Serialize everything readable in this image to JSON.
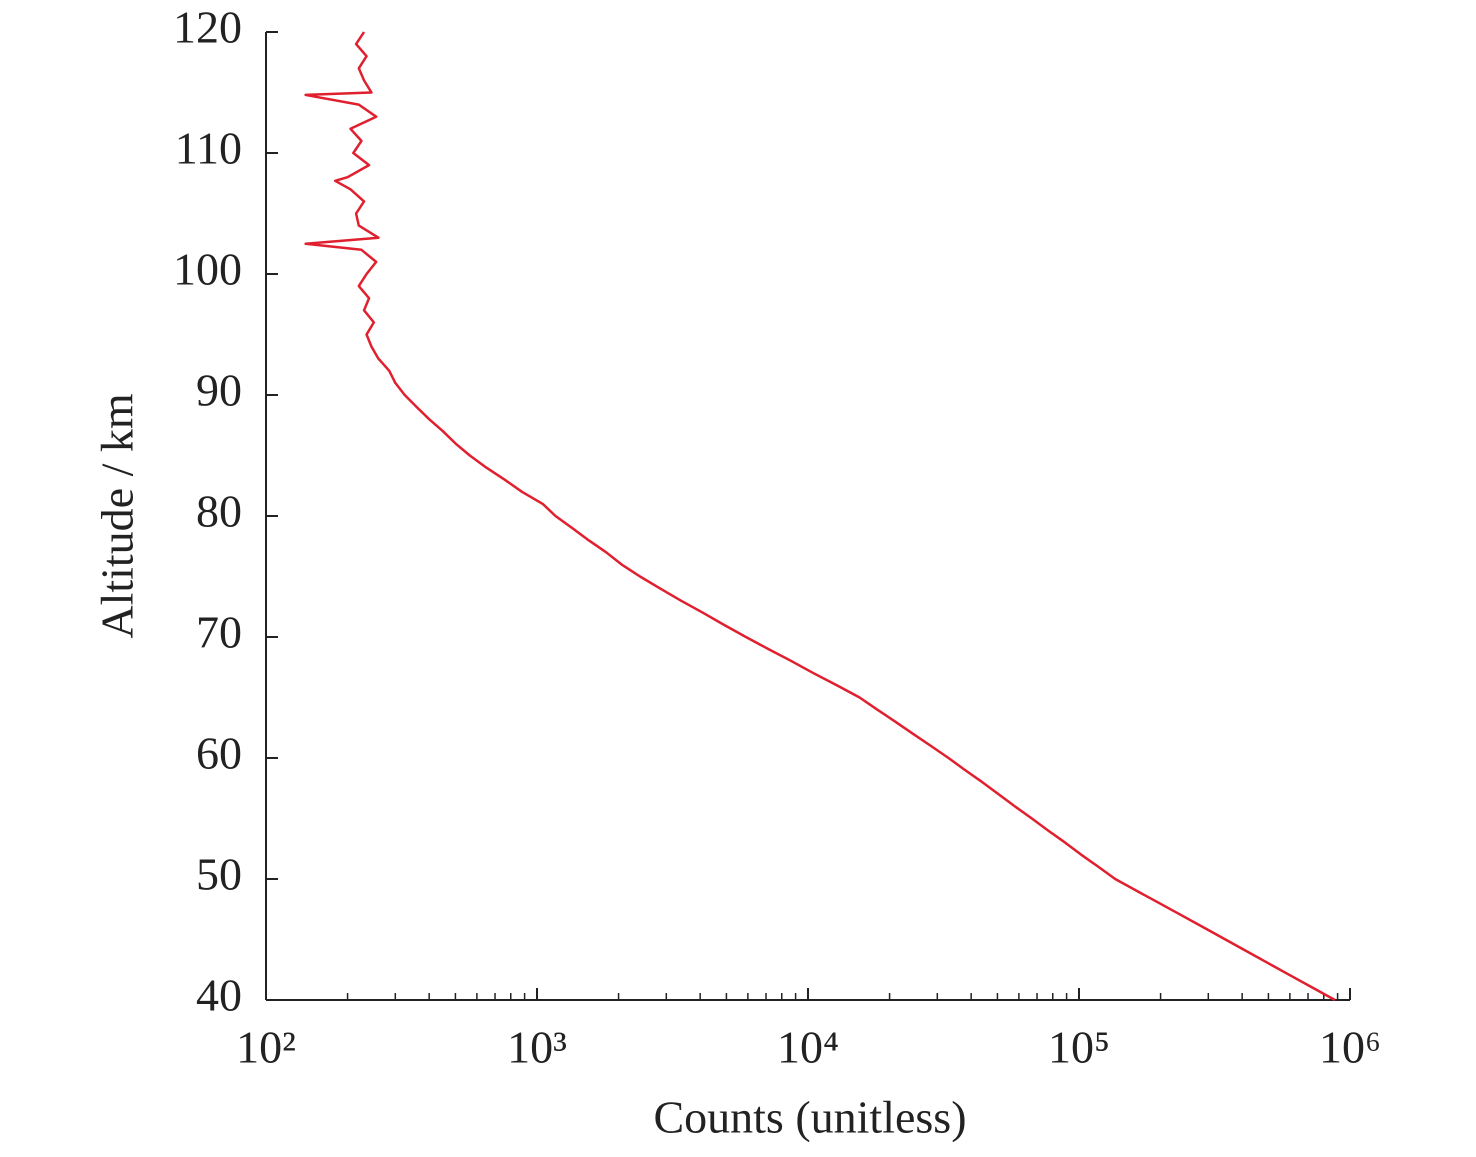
{
  "chart_data": {
    "type": "line",
    "xlabel": "Counts (unitless)",
    "ylabel": "Altitude / km",
    "xscale": "log",
    "xlim": [
      100,
      1000000
    ],
    "ylim": [
      40,
      120
    ],
    "xticks": [
      {
        "value": 100,
        "label": "10²"
      },
      {
        "value": 1000,
        "label": "10³"
      },
      {
        "value": 10000,
        "label": "10⁴"
      },
      {
        "value": 100000,
        "label": "10⁵"
      },
      {
        "value": 1000000,
        "label": "10⁶"
      }
    ],
    "xminorticks": [
      200,
      300,
      400,
      500,
      600,
      700,
      800,
      900,
      2000,
      3000,
      4000,
      5000,
      6000,
      7000,
      8000,
      9000,
      20000,
      30000,
      40000,
      50000,
      60000,
      70000,
      80000,
      90000,
      200000,
      300000,
      400000,
      500000,
      600000,
      700000,
      800000,
      900000
    ],
    "yticks": [
      40,
      50,
      60,
      70,
      80,
      90,
      100,
      110,
      120
    ],
    "series": [
      {
        "color": "#e0202e",
        "x": [
          880000,
          730000,
          606000,
          503000,
          418000,
          347000,
          288000,
          239000,
          198000,
          164000,
          136000,
          118000,
          102000,
          89000,
          77000,
          67000,
          58000,
          50500,
          44000,
          38000,
          33000,
          28400,
          24400,
          21000,
          18000,
          15500,
          12800,
          10500,
          8700,
          7150,
          5900,
          4900,
          4100,
          3400,
          2850,
          2400,
          2050,
          1800,
          1550,
          1350,
          1170,
          1050,
          880,
          760,
          650,
          565,
          500,
          450,
          400,
          360,
          325,
          300,
          285,
          260,
          245,
          235,
          250,
          230,
          240,
          220,
          235,
          255,
          225,
          140,
          260,
          220,
          215,
          230,
          205,
          180,
          200,
          240,
          210,
          225,
          205,
          255,
          220,
          140,
          245,
          230,
          220,
          235,
          215,
          230
        ],
        "values": [
          40,
          41,
          42,
          43,
          44,
          45,
          46,
          47,
          48,
          49,
          50,
          51,
          52,
          53,
          54,
          55,
          56,
          57,
          58,
          59,
          60,
          61,
          62,
          63,
          64,
          65,
          66,
          67,
          68,
          69,
          70,
          71,
          72,
          73,
          74,
          75,
          76,
          77,
          78,
          79,
          80,
          81,
          82,
          83,
          84,
          85,
          86,
          87,
          88,
          89,
          90,
          91,
          92,
          93,
          94,
          95,
          96,
          97,
          98,
          99,
          100,
          101,
          102,
          102.5,
          103,
          104,
          105,
          106,
          107,
          107.7,
          108,
          109,
          110,
          111,
          112,
          113,
          114,
          114.8,
          115,
          116,
          117,
          118,
          119,
          120
        ]
      }
    ]
  }
}
